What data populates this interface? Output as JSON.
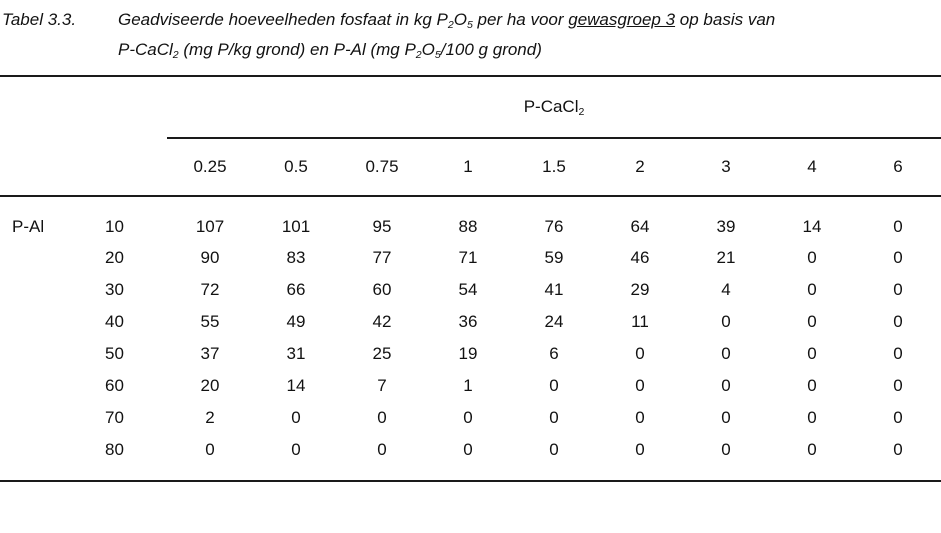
{
  "caption": {
    "label": "Tabel 3.3.",
    "lines": [
      [
        {
          "t": "Geadviseerde hoeveelheden fosfaat in kg P"
        },
        {
          "t": "2",
          "s": "sub"
        },
        {
          "t": "O"
        },
        {
          "t": "5",
          "s": "sub"
        },
        {
          "t": " per ha voor "
        },
        {
          "t": "gewasgroep 3",
          "s": "underline"
        },
        {
          "t": " op basis van"
        }
      ],
      [
        {
          "t": "P-CaCl"
        },
        {
          "t": "2",
          "s": "sub"
        },
        {
          "t": " (mg P/kg grond) en P-Al (mg P"
        },
        {
          "t": "2",
          "s": "sub"
        },
        {
          "t": "O"
        },
        {
          "t": "5",
          "s": "sub"
        },
        {
          "t": "/100 g grond)"
        }
      ]
    ]
  },
  "table": {
    "group_header": [
      {
        "t": "P-CaCl"
      },
      {
        "t": "2",
        "s": "sub"
      }
    ],
    "row_axis_label": "P-Al",
    "col_headers": [
      "0.25",
      "0.5",
      "0.75",
      "1",
      "1.5",
      "2",
      "3",
      "4",
      "6"
    ],
    "rows": [
      {
        "p_al": "10",
        "values": [
          "107",
          "101",
          "95",
          "88",
          "76",
          "64",
          "39",
          "14",
          "0"
        ]
      },
      {
        "p_al": "20",
        "values": [
          "90",
          "83",
          "77",
          "71",
          "59",
          "46",
          "21",
          "0",
          "0"
        ]
      },
      {
        "p_al": "30",
        "values": [
          "72",
          "66",
          "60",
          "54",
          "41",
          "29",
          "4",
          "0",
          "0"
        ]
      },
      {
        "p_al": "40",
        "values": [
          "55",
          "49",
          "42",
          "36",
          "24",
          "11",
          "0",
          "0",
          "0"
        ]
      },
      {
        "p_al": "50",
        "values": [
          "37",
          "31",
          "25",
          "19",
          "6",
          "0",
          "0",
          "0",
          "0"
        ]
      },
      {
        "p_al": "60",
        "values": [
          "20",
          "14",
          "7",
          "1",
          "0",
          "0",
          "0",
          "0",
          "0"
        ]
      },
      {
        "p_al": "70",
        "values": [
          "2",
          "0",
          "0",
          "0",
          "0",
          "0",
          "0",
          "0",
          "0"
        ]
      },
      {
        "p_al": "80",
        "values": [
          "0",
          "0",
          "0",
          "0",
          "0",
          "0",
          "0",
          "0",
          "0"
        ]
      }
    ],
    "text_color": "#121212",
    "rule_color": "#1a1a1a"
  }
}
